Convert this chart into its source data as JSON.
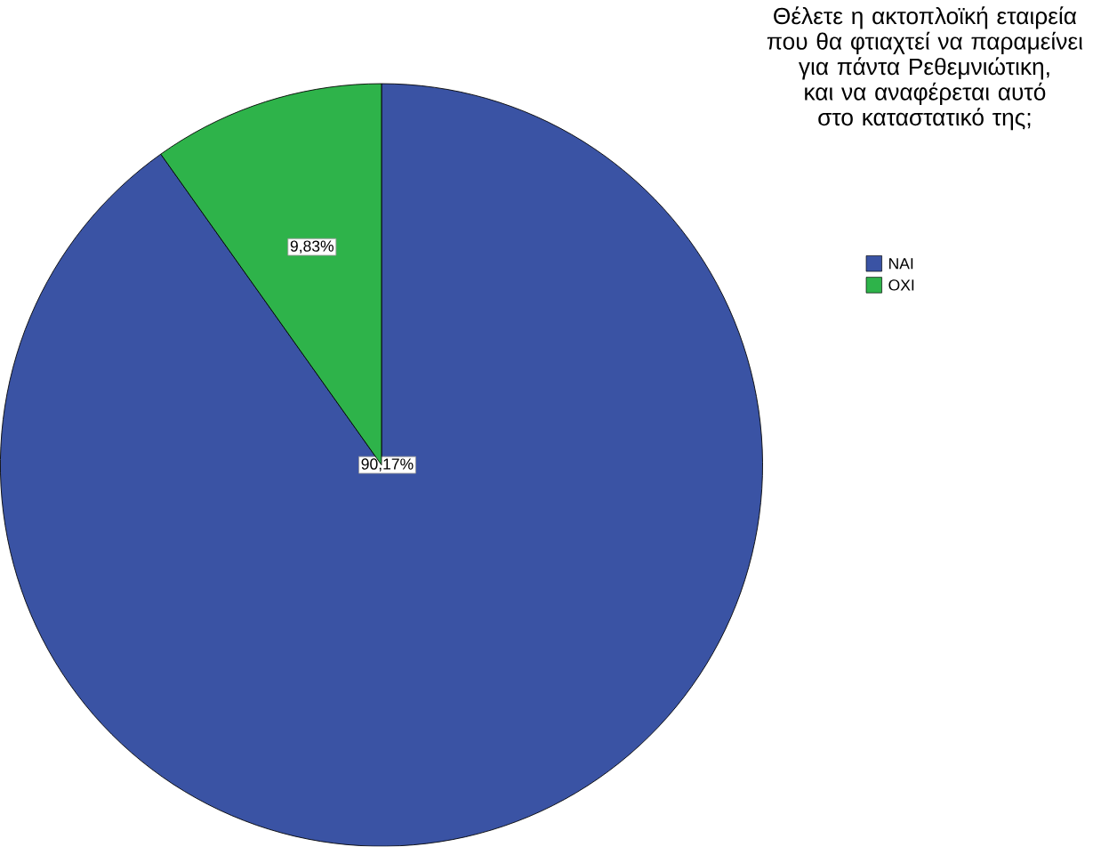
{
  "chart_data": {
    "type": "pie",
    "title": "Θέλετε η ακτοπλοϊκή εταιρεία που θα φτιαχτεί να παραμείνει για πάντα Ρεθεμνιώτικη, και να αναφέρεται αυτό στο καταστατικό της;",
    "categories": [
      "ΝΑΙ",
      "ΟΧΙ"
    ],
    "values": [
      90.17,
      9.83
    ],
    "colors": [
      "#3a53a4",
      "#2eb34a"
    ],
    "value_labels": [
      "90,17%",
      "9,83%"
    ],
    "legend": "right"
  }
}
